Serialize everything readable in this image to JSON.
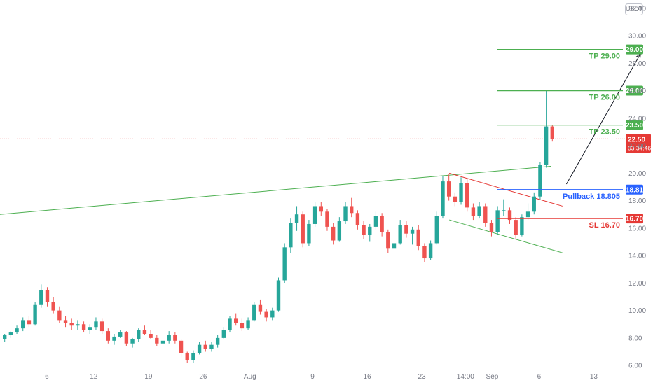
{
  "currency": "USDT",
  "colors": {
    "up": "#26a69a",
    "down": "#ef5350",
    "green": "#4caf50",
    "red": "#e53935",
    "blue": "#2962ff",
    "axis_text": "#787b86"
  },
  "chart_data": {
    "type": "candlestick",
    "title": "",
    "xlabel": "",
    "ylabel": "",
    "ylim": [
      5.6,
      32.6
    ],
    "y_ticks": [
      "6.00",
      "8.00",
      "10.00",
      "12.00",
      "14.00",
      "16.00",
      "18.00",
      "20.00",
      "22.00",
      "24.00",
      "26.00",
      "28.00",
      "30.00",
      "32.00"
    ],
    "x_ticks": [
      "6",
      "12",
      "19",
      "26",
      "Aug",
      "9",
      "16",
      "23",
      "14:00",
      "Sep",
      "6",
      "13"
    ],
    "x_tick_days": [
      6,
      12,
      19,
      26,
      32,
      40,
      47,
      54,
      59.58,
      63,
      69,
      76
    ],
    "x_range_days": [
      0,
      80
    ],
    "series": [
      {
        "ohlc": [
          [
            7.9,
            8.3,
            7.7,
            8.2
          ],
          [
            8.2,
            8.5,
            8.0,
            8.4
          ],
          [
            8.4,
            8.9,
            8.3,
            8.7
          ],
          [
            8.7,
            9.5,
            8.5,
            9.3
          ],
          [
            9.3,
            9.6,
            8.8,
            9.0
          ],
          [
            9.0,
            10.6,
            8.9,
            10.4
          ],
          [
            10.4,
            11.9,
            10.2,
            11.5
          ],
          [
            11.5,
            11.7,
            10.3,
            10.6
          ],
          [
            10.6,
            11.0,
            9.8,
            10.0
          ],
          [
            10.0,
            10.3,
            9.1,
            9.3
          ],
          [
            9.3,
            9.6,
            8.8,
            9.1
          ],
          [
            9.1,
            9.4,
            8.6,
            8.9
          ],
          [
            8.9,
            9.3,
            8.6,
            9.0
          ],
          [
            9.0,
            9.2,
            8.4,
            8.6
          ],
          [
            8.6,
            9.0,
            8.3,
            8.8
          ],
          [
            8.8,
            9.5,
            8.6,
            9.2
          ],
          [
            9.2,
            9.4,
            8.3,
            8.5
          ],
          [
            8.5,
            8.7,
            7.6,
            7.8
          ],
          [
            7.8,
            8.3,
            7.5,
            8.1
          ],
          [
            8.1,
            8.6,
            8.0,
            8.4
          ],
          [
            8.4,
            8.5,
            7.4,
            7.6
          ],
          [
            7.6,
            8.0,
            7.3,
            7.9
          ],
          [
            7.9,
            8.7,
            7.7,
            8.6
          ],
          [
            8.6,
            8.9,
            8.2,
            8.3
          ],
          [
            8.3,
            8.6,
            7.9,
            8.0
          ],
          [
            8.0,
            8.2,
            7.4,
            7.6
          ],
          [
            7.6,
            8.0,
            7.2,
            7.8
          ],
          [
            7.8,
            8.5,
            7.6,
            8.2
          ],
          [
            8.2,
            8.4,
            7.6,
            7.8
          ],
          [
            7.8,
            7.9,
            6.6,
            6.9
          ],
          [
            6.9,
            7.0,
            6.2,
            6.4
          ],
          [
            6.4,
            7.1,
            6.2,
            6.9
          ],
          [
            6.9,
            7.7,
            6.8,
            7.5
          ],
          [
            7.5,
            7.8,
            7.0,
            7.2
          ],
          [
            7.2,
            7.7,
            7.0,
            7.5
          ],
          [
            7.5,
            8.2,
            7.3,
            8.0
          ],
          [
            8.0,
            8.8,
            7.9,
            8.6
          ],
          [
            8.6,
            9.6,
            8.4,
            9.4
          ],
          [
            9.4,
            9.8,
            8.9,
            9.1
          ],
          [
            9.1,
            9.4,
            8.5,
            8.7
          ],
          [
            8.7,
            9.5,
            8.6,
            9.3
          ],
          [
            9.3,
            10.6,
            9.2,
            10.4
          ],
          [
            10.4,
            10.8,
            9.7,
            9.9
          ],
          [
            9.9,
            10.1,
            9.2,
            9.5
          ],
          [
            9.5,
            10.2,
            9.3,
            10.0
          ],
          [
            10.0,
            12.4,
            9.9,
            12.2
          ],
          [
            12.2,
            14.9,
            12.0,
            14.6
          ],
          [
            14.6,
            16.7,
            14.2,
            16.4
          ],
          [
            16.4,
            17.6,
            15.8,
            17.0
          ],
          [
            17.0,
            17.2,
            14.6,
            14.9
          ],
          [
            14.9,
            16.6,
            14.7,
            16.3
          ],
          [
            16.3,
            17.9,
            16.1,
            17.6
          ],
          [
            17.6,
            17.9,
            16.9,
            17.2
          ],
          [
            17.2,
            17.4,
            15.8,
            16.1
          ],
          [
            16.1,
            16.4,
            14.8,
            15.1
          ],
          [
            15.1,
            16.8,
            15.0,
            16.5
          ],
          [
            16.5,
            17.9,
            16.3,
            17.6
          ],
          [
            17.6,
            18.2,
            16.8,
            17.1
          ],
          [
            17.1,
            17.3,
            15.9,
            16.2
          ],
          [
            16.2,
            16.5,
            15.2,
            15.5
          ],
          [
            15.5,
            16.3,
            15.0,
            16.1
          ],
          [
            16.1,
            17.2,
            15.9,
            16.9
          ],
          [
            16.9,
            17.1,
            15.4,
            15.7
          ],
          [
            15.7,
            15.9,
            14.2,
            14.5
          ],
          [
            14.5,
            15.2,
            14.0,
            14.9
          ],
          [
            14.9,
            16.6,
            14.8,
            16.2
          ],
          [
            16.2,
            16.5,
            15.3,
            15.6
          ],
          [
            15.6,
            16.1,
            14.8,
            15.9
          ],
          [
            15.9,
            16.2,
            14.4,
            14.7
          ],
          [
            14.7,
            14.9,
            13.5,
            13.8
          ],
          [
            13.8,
            15.1,
            13.7,
            14.9
          ],
          [
            14.9,
            17.2,
            14.8,
            16.9
          ],
          [
            16.9,
            19.8,
            16.7,
            19.4
          ],
          [
            19.4,
            19.9,
            18.0,
            18.3
          ],
          [
            18.3,
            18.6,
            17.6,
            17.9
          ],
          [
            17.9,
            19.7,
            17.7,
            19.3
          ],
          [
            19.3,
            19.6,
            17.2,
            17.5
          ],
          [
            17.5,
            17.8,
            16.6,
            16.9
          ],
          [
            16.9,
            17.9,
            16.7,
            17.6
          ],
          [
            17.6,
            17.8,
            16.1,
            16.4
          ],
          [
            16.4,
            16.6,
            15.4,
            15.7
          ],
          [
            15.7,
            17.6,
            15.5,
            17.3
          ],
          [
            17.3,
            18.1,
            16.9,
            17.3
          ],
          [
            17.3,
            17.5,
            16.3,
            16.6
          ],
          [
            16.6,
            16.8,
            15.2,
            15.5
          ],
          [
            15.5,
            17.0,
            15.4,
            16.8
          ],
          [
            16.8,
            17.8,
            16.6,
            17.2
          ],
          [
            17.2,
            18.6,
            17.0,
            18.3
          ],
          [
            18.3,
            20.8,
            18.1,
            20.6
          ],
          [
            20.6,
            26.0,
            20.4,
            23.4
          ],
          [
            23.4,
            23.5,
            22.3,
            22.5
          ]
        ]
      }
    ],
    "levels": [
      {
        "label": "TP 29.00",
        "value": 29.0,
        "badge": "29.00",
        "color": "#4caf50"
      },
      {
        "label": "TP 26.00",
        "value": 26.0,
        "badge": "26.00",
        "color": "#4caf50"
      },
      {
        "label": "TP 23.50",
        "value": 23.5,
        "badge": "23.50",
        "color": "#4caf50"
      },
      {
        "label": "Pullback 18.805",
        "value": 18.805,
        "badge": "18.81",
        "color": "#2962ff"
      },
      {
        "label": "SL 16.70",
        "value": 16.7,
        "badge": "16.70",
        "color": "#e53935"
      }
    ],
    "current_price": {
      "value": 22.5,
      "label": "22.50",
      "countdown": "03:34:46"
    },
    "trendlines": [
      {
        "role": "long-support",
        "color": "#4caf50",
        "from": [
          0,
          17.0
        ],
        "to": [
          70.5,
          20.5
        ]
      },
      {
        "role": "channel-top",
        "color": "#e53935",
        "from": [
          57.5,
          20.0
        ],
        "to": [
          72,
          17.6
        ]
      },
      {
        "role": "channel-bottom",
        "color": "#4caf50",
        "from": [
          57.5,
          16.6
        ],
        "to": [
          72,
          14.2
        ]
      }
    ],
    "projection_arrow": {
      "from": [
        72.5,
        19.2
      ],
      "to": [
        82,
        28.7
      ]
    }
  }
}
